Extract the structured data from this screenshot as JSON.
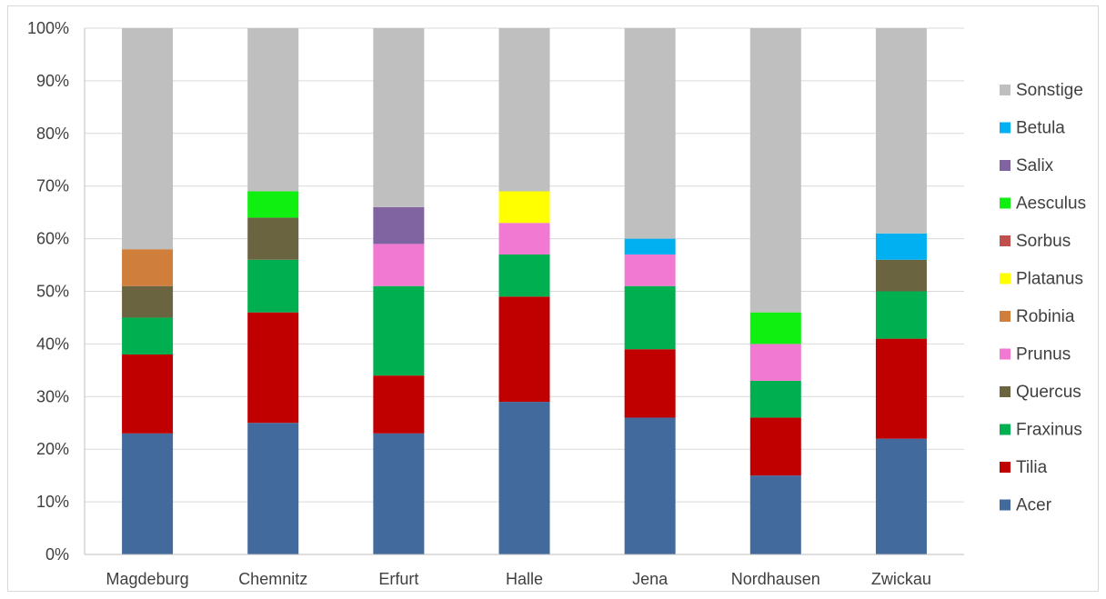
{
  "chart_data": {
    "type": "bar",
    "stacked": true,
    "categories": [
      "Magdeburg",
      "Chemnitz",
      "Erfurt",
      "Halle",
      "Jena",
      "Nordhausen",
      "Zwickau"
    ],
    "ylim": [
      0,
      100
    ],
    "yticks": [
      "0%",
      "10%",
      "20%",
      "30%",
      "40%",
      "50%",
      "60%",
      "70%",
      "80%",
      "90%",
      "100%"
    ],
    "grid": true,
    "legend_position": "right",
    "series": [
      {
        "name": "Acer",
        "color": "#426A9C",
        "values": [
          23,
          25,
          23,
          29,
          26,
          15,
          22
        ]
      },
      {
        "name": "Tilia",
        "color": "#C00000",
        "values": [
          15,
          21,
          11,
          20,
          13,
          11,
          19
        ]
      },
      {
        "name": "Fraxinus",
        "color": "#00B050",
        "values": [
          7,
          10,
          17,
          8,
          12,
          7,
          9
        ]
      },
      {
        "name": "Quercus",
        "color": "#6B6441",
        "values": [
          6,
          8,
          0,
          0,
          0,
          0,
          6
        ]
      },
      {
        "name": "Prunus",
        "color": "#F279D2",
        "values": [
          0,
          0,
          8,
          6,
          6,
          7,
          0
        ]
      },
      {
        "name": "Robinia",
        "color": "#D07E3C",
        "values": [
          7,
          0,
          0,
          0,
          0,
          0,
          0
        ]
      },
      {
        "name": "Platanus",
        "color": "#FFFF00",
        "values": [
          0,
          0,
          0,
          6,
          0,
          0,
          0
        ]
      },
      {
        "name": "Sorbus",
        "color": "#C0504D",
        "values": [
          0,
          0,
          0,
          0,
          0,
          0,
          0
        ]
      },
      {
        "name": "Aesculus",
        "color": "#10F010",
        "values": [
          0,
          5,
          0,
          0,
          0,
          6,
          0
        ]
      },
      {
        "name": "Salix",
        "color": "#8064A2",
        "values": [
          0,
          0,
          7,
          0,
          0,
          0,
          0
        ]
      },
      {
        "name": "Betula",
        "color": "#00B0F0",
        "values": [
          0,
          0,
          0,
          0,
          3,
          0,
          5
        ]
      },
      {
        "name": "Sonstige",
        "color": "#BFBFBF",
        "values": [
          42,
          31,
          34,
          31,
          40,
          54,
          39
        ]
      }
    ]
  }
}
